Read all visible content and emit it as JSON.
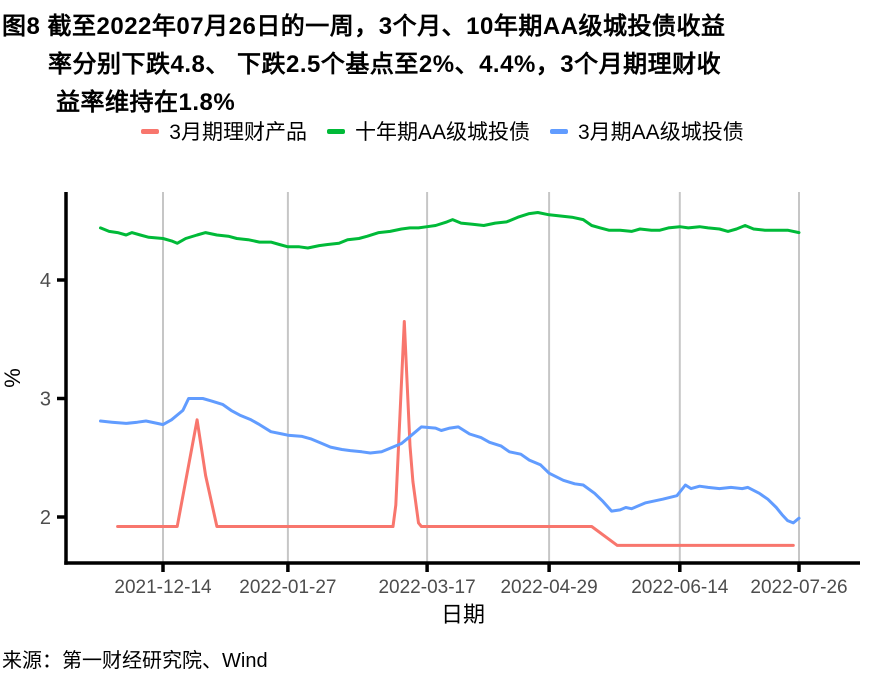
{
  "figure": {
    "label": "图8",
    "title_lines": [
      "图8 截至2022年07月26日的一周，3个月、10年期AA级城投债收益",
      "率分别下跌4.8、 下跌2.5个基点至2%、4.4%，3个月期理财收",
      "益率维持在1.8%"
    ],
    "source": "来源：第一财经研究院、Wind"
  },
  "chart_data": {
    "type": "line",
    "title": "截至2022年07月26日的一周，3个月、10年期AA级城投债收益率分别下跌4.8、下跌2.5个基点至2%、4.4%，3个月期理财收益率维持在1.8%",
    "xlabel": "日期",
    "ylabel": "%",
    "x_ticks": [
      "2021-12-14",
      "2022-01-27",
      "2022-03-17",
      "2022-04-29",
      "2022-06-14",
      "2022-07-26"
    ],
    "y_ticks": [
      2,
      3,
      4
    ],
    "ylim": [
      1.6,
      4.75
    ],
    "xlim": [
      "2021-11-10",
      "2022-08-17"
    ],
    "grid": "vertical-only",
    "legend_position": "top",
    "style": {
      "grid_color": "#C6C6C6",
      "axis_color": "#000000",
      "tick_label_color": "#4D4D4D",
      "line_width": 3
    },
    "series": [
      {
        "name": "3月期理财产品",
        "color": "#F8766D",
        "points": [
          [
            "2021-11-28",
            1.92
          ],
          [
            "2021-12-19",
            1.92
          ],
          [
            "2021-12-26",
            2.82
          ],
          [
            "2021-12-29",
            2.35
          ],
          [
            "2022-01-02",
            1.92
          ],
          [
            "2022-03-05",
            1.92
          ],
          [
            "2022-03-06",
            2.1
          ],
          [
            "2022-03-09",
            3.65
          ],
          [
            "2022-03-11",
            2.6
          ],
          [
            "2022-03-12",
            2.3
          ],
          [
            "2022-03-14",
            1.95
          ],
          [
            "2022-03-15",
            1.92
          ],
          [
            "2022-05-14",
            1.92
          ],
          [
            "2022-05-23",
            1.76
          ],
          [
            "2022-07-24",
            1.76
          ]
        ]
      },
      {
        "name": "十年期AA级城投债",
        "color": "#00BA38",
        "points": [
          [
            "2021-11-22",
            4.44
          ],
          [
            "2021-11-25",
            4.41
          ],
          [
            "2021-11-28",
            4.4
          ],
          [
            "2021-12-01",
            4.38
          ],
          [
            "2021-12-03",
            4.4
          ],
          [
            "2021-12-06",
            4.38
          ],
          [
            "2021-12-09",
            4.36
          ],
          [
            "2021-12-14",
            4.35
          ],
          [
            "2021-12-17",
            4.33
          ],
          [
            "2021-12-19",
            4.31
          ],
          [
            "2021-12-22",
            4.35
          ],
          [
            "2021-12-26",
            4.38
          ],
          [
            "2021-12-29",
            4.4
          ],
          [
            "2022-01-02",
            4.38
          ],
          [
            "2022-01-06",
            4.37
          ],
          [
            "2022-01-09",
            4.35
          ],
          [
            "2022-01-13",
            4.34
          ],
          [
            "2022-01-17",
            4.32
          ],
          [
            "2022-01-21",
            4.32
          ],
          [
            "2022-01-24",
            4.3
          ],
          [
            "2022-01-27",
            4.28
          ],
          [
            "2022-01-31",
            4.28
          ],
          [
            "2022-02-03",
            4.27
          ],
          [
            "2022-02-07",
            4.29
          ],
          [
            "2022-02-10",
            4.3
          ],
          [
            "2022-02-14",
            4.31
          ],
          [
            "2022-02-17",
            4.34
          ],
          [
            "2022-02-21",
            4.35
          ],
          [
            "2022-02-24",
            4.37
          ],
          [
            "2022-02-28",
            4.4
          ],
          [
            "2022-03-04",
            4.41
          ],
          [
            "2022-03-08",
            4.43
          ],
          [
            "2022-03-11",
            4.44
          ],
          [
            "2022-03-14",
            4.44
          ],
          [
            "2022-03-17",
            4.45
          ],
          [
            "2022-03-20",
            4.46
          ],
          [
            "2022-03-24",
            4.49
          ],
          [
            "2022-03-26",
            4.51
          ],
          [
            "2022-03-29",
            4.48
          ],
          [
            "2022-04-02",
            4.47
          ],
          [
            "2022-04-06",
            4.46
          ],
          [
            "2022-04-10",
            4.48
          ],
          [
            "2022-04-14",
            4.49
          ],
          [
            "2022-04-18",
            4.53
          ],
          [
            "2022-04-22",
            4.56
          ],
          [
            "2022-04-25",
            4.57
          ],
          [
            "2022-04-29",
            4.55
          ],
          [
            "2022-05-03",
            4.54
          ],
          [
            "2022-05-07",
            4.53
          ],
          [
            "2022-05-11",
            4.51
          ],
          [
            "2022-05-14",
            4.46
          ],
          [
            "2022-05-17",
            4.44
          ],
          [
            "2022-05-20",
            4.42
          ],
          [
            "2022-05-24",
            4.42
          ],
          [
            "2022-05-28",
            4.41
          ],
          [
            "2022-05-31",
            4.43
          ],
          [
            "2022-06-04",
            4.42
          ],
          [
            "2022-06-07",
            4.42
          ],
          [
            "2022-06-10",
            4.44
          ],
          [
            "2022-06-14",
            4.45
          ],
          [
            "2022-06-17",
            4.44
          ],
          [
            "2022-06-21",
            4.45
          ],
          [
            "2022-06-24",
            4.44
          ],
          [
            "2022-06-28",
            4.43
          ],
          [
            "2022-07-01",
            4.41
          ],
          [
            "2022-07-04",
            4.43
          ],
          [
            "2022-07-07",
            4.46
          ],
          [
            "2022-07-10",
            4.43
          ],
          [
            "2022-07-14",
            4.42
          ],
          [
            "2022-07-18",
            4.42
          ],
          [
            "2022-07-22",
            4.42
          ],
          [
            "2022-07-26",
            4.4
          ]
        ]
      },
      {
        "name": "3月期AA级城投债",
        "color": "#619CFF",
        "points": [
          [
            "2021-11-22",
            2.81
          ],
          [
            "2021-11-26",
            2.8
          ],
          [
            "2021-12-01",
            2.79
          ],
          [
            "2021-12-05",
            2.8
          ],
          [
            "2021-12-08",
            2.81
          ],
          [
            "2021-12-12",
            2.79
          ],
          [
            "2021-12-14",
            2.78
          ],
          [
            "2021-12-17",
            2.82
          ],
          [
            "2021-12-21",
            2.9
          ],
          [
            "2021-12-23",
            3.0
          ],
          [
            "2021-12-28",
            3.0
          ],
          [
            "2021-12-31",
            2.98
          ],
          [
            "2022-01-04",
            2.95
          ],
          [
            "2022-01-07",
            2.9
          ],
          [
            "2022-01-10",
            2.86
          ],
          [
            "2022-01-14",
            2.82
          ],
          [
            "2022-01-17",
            2.78
          ],
          [
            "2022-01-21",
            2.72
          ],
          [
            "2022-01-25",
            2.7
          ],
          [
            "2022-01-27",
            2.69
          ],
          [
            "2022-02-01",
            2.68
          ],
          [
            "2022-02-04",
            2.66
          ],
          [
            "2022-02-08",
            2.62
          ],
          [
            "2022-02-11",
            2.59
          ],
          [
            "2022-02-15",
            2.57
          ],
          [
            "2022-02-18",
            2.56
          ],
          [
            "2022-02-22",
            2.55
          ],
          [
            "2022-02-25",
            2.54
          ],
          [
            "2022-03-01",
            2.55
          ],
          [
            "2022-03-04",
            2.58
          ],
          [
            "2022-03-08",
            2.62
          ],
          [
            "2022-03-10",
            2.66
          ],
          [
            "2022-03-13",
            2.72
          ],
          [
            "2022-03-15",
            2.76
          ],
          [
            "2022-03-20",
            2.75
          ],
          [
            "2022-03-22",
            2.73
          ],
          [
            "2022-03-25",
            2.75
          ],
          [
            "2022-03-28",
            2.76
          ],
          [
            "2022-04-01",
            2.7
          ],
          [
            "2022-04-05",
            2.67
          ],
          [
            "2022-04-08",
            2.63
          ],
          [
            "2022-04-12",
            2.6
          ],
          [
            "2022-04-15",
            2.55
          ],
          [
            "2022-04-19",
            2.53
          ],
          [
            "2022-04-22",
            2.48
          ],
          [
            "2022-04-26",
            2.44
          ],
          [
            "2022-04-29",
            2.37
          ],
          [
            "2022-05-04",
            2.31
          ],
          [
            "2022-05-08",
            2.28
          ],
          [
            "2022-05-11",
            2.27
          ],
          [
            "2022-05-15",
            2.2
          ],
          [
            "2022-05-18",
            2.13
          ],
          [
            "2022-05-21",
            2.05
          ],
          [
            "2022-05-24",
            2.06
          ],
          [
            "2022-05-26",
            2.08
          ],
          [
            "2022-05-28",
            2.07
          ],
          [
            "2022-06-02",
            2.12
          ],
          [
            "2022-06-08",
            2.15
          ],
          [
            "2022-06-13",
            2.18
          ],
          [
            "2022-06-16",
            2.27
          ],
          [
            "2022-06-18",
            2.24
          ],
          [
            "2022-06-21",
            2.26
          ],
          [
            "2022-06-24",
            2.25
          ],
          [
            "2022-06-28",
            2.24
          ],
          [
            "2022-07-02",
            2.25
          ],
          [
            "2022-07-06",
            2.24
          ],
          [
            "2022-07-08",
            2.25
          ],
          [
            "2022-07-12",
            2.2
          ],
          [
            "2022-07-15",
            2.15
          ],
          [
            "2022-07-18",
            2.08
          ],
          [
            "2022-07-20",
            2.02
          ],
          [
            "2022-07-22",
            1.97
          ],
          [
            "2022-07-24",
            1.95
          ],
          [
            "2022-07-26",
            1.99
          ]
        ]
      }
    ]
  }
}
